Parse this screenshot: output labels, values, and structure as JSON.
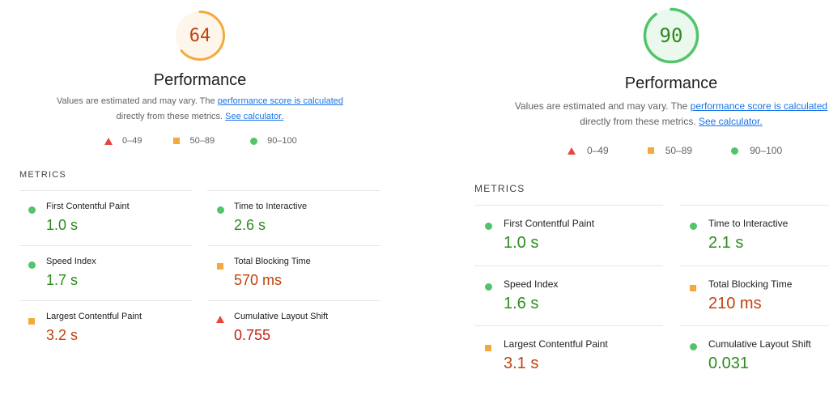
{
  "reports": [
    {
      "id": "left",
      "score": "64",
      "score_fraction": 0.64,
      "score_color": "#f4a93c",
      "score_bg": "#fef6ea",
      "score_text_color": "#c0430d",
      "title": "Performance",
      "description": {
        "prefix": "Values are estimated and may vary. The ",
        "link_score": "performance score is calculated",
        "middle": "directly from these metrics. ",
        "link_calc": "See calculator."
      },
      "legend": [
        {
          "shape": "triangle",
          "label": "0–49"
        },
        {
          "shape": "square",
          "label": "50–89"
        },
        {
          "shape": "circle",
          "label": "90–100"
        }
      ],
      "metrics_header": "METRICS",
      "metrics": [
        {
          "label": "First Contentful Paint",
          "value": "1.0 s",
          "rating": "good"
        },
        {
          "label": "Time to Interactive",
          "value": "2.6 s",
          "rating": "good"
        },
        {
          "label": "Speed Index",
          "value": "1.7 s",
          "rating": "good"
        },
        {
          "label": "Total Blocking Time",
          "value": "570 ms",
          "rating": "average"
        },
        {
          "label": "Largest Contentful Paint",
          "value": "3.2 s",
          "rating": "average"
        },
        {
          "label": "Cumulative Layout Shift",
          "value": "0.755",
          "rating": "fail"
        }
      ]
    },
    {
      "id": "right",
      "score": "90",
      "score_fraction": 0.9,
      "score_color": "#52c46b",
      "score_bg": "#eaf8ed",
      "score_text_color": "#2e8b1e",
      "title": "Performance",
      "description": {
        "prefix": "Values are estimated and may vary. The ",
        "link_score": "performance score is calculated",
        "middle": "directly from these metrics. ",
        "link_calc": "See calculator."
      },
      "legend": [
        {
          "shape": "triangle",
          "label": "0–49"
        },
        {
          "shape": "square",
          "label": "50–89"
        },
        {
          "shape": "circle",
          "label": "90–100"
        }
      ],
      "metrics_header": "METRICS",
      "metrics": [
        {
          "label": "First Contentful Paint",
          "value": "1.0 s",
          "rating": "good"
        },
        {
          "label": "Time to Interactive",
          "value": "2.1 s",
          "rating": "good"
        },
        {
          "label": "Speed Index",
          "value": "1.6 s",
          "rating": "good"
        },
        {
          "label": "Total Blocking Time",
          "value": "210 ms",
          "rating": "average"
        },
        {
          "label": "Largest Contentful Paint",
          "value": "3.1 s",
          "rating": "average"
        },
        {
          "label": "Cumulative Layout Shift",
          "value": "0.031",
          "rating": "good"
        }
      ]
    }
  ]
}
